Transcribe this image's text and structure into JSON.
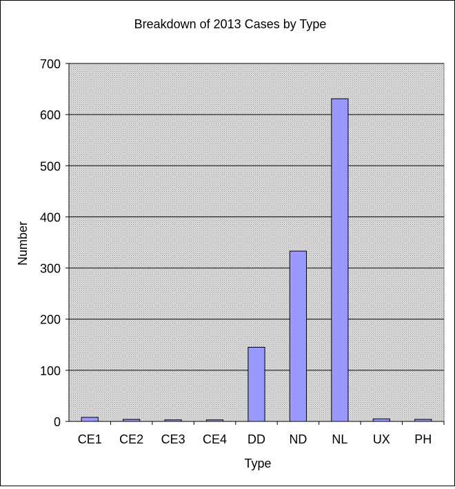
{
  "chart_data": {
    "type": "bar",
    "title": "Breakdown of 2013 Cases by Type",
    "xlabel": "Type",
    "ylabel": "Number",
    "categories": [
      "CE1",
      "CE2",
      "CE3",
      "CE4",
      "DD",
      "ND",
      "NL",
      "UX",
      "PH"
    ],
    "values": [
      8,
      4,
      3,
      3,
      145,
      333,
      631,
      5,
      4
    ],
    "ylim": [
      0,
      700
    ],
    "yticks": [
      0,
      100,
      200,
      300,
      400,
      500,
      600,
      700
    ],
    "grid": true,
    "legend": "none",
    "colors": {
      "bar_fill": "#9999ff",
      "bar_stroke": "#000000",
      "plot_background": "#c0c0c0",
      "gridline": "#000000"
    }
  }
}
